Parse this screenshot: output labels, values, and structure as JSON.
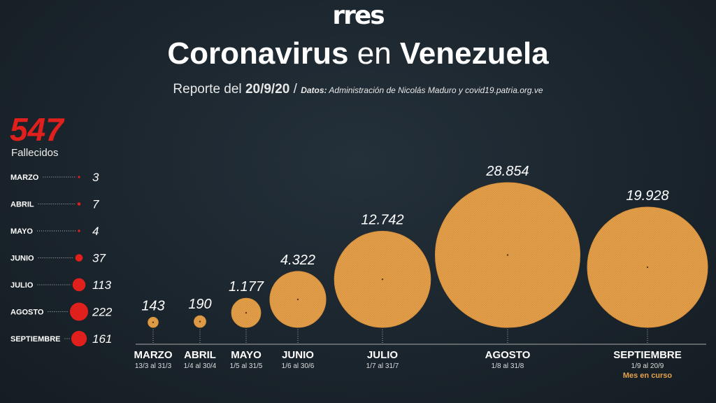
{
  "logo": "rres",
  "header": {
    "title_part1": "Coronavirus",
    "title_part2": " en ",
    "title_part3": "Venezuela",
    "report_prefix": "Reporte del ",
    "report_date": "20/9/20",
    "source_slash": " /",
    "source_label": "Datos:",
    "source_text": " Administración de Nicolás Maduro y covid19.patria.org.ve"
  },
  "deaths_panel": {
    "total": "547",
    "label": "Fallecidos"
  },
  "colors": {
    "background": "#1b252d",
    "cases_circle": "#e5a04c",
    "deaths_circle": "#e0201c",
    "highlight_text": "#e5a04c"
  },
  "chart_data": [
    {
      "type": "bubble",
      "title": "Fallecidos",
      "categories": [
        "MARZO",
        "ABRIL",
        "MAYO",
        "JUNIO",
        "JULIO",
        "AGOSTO",
        "SEPTIEMBRE"
      ],
      "values": [
        3,
        7,
        4,
        37,
        113,
        222,
        161
      ],
      "value_labels": [
        "3",
        "7",
        "4",
        "37",
        "113",
        "222",
        "161"
      ],
      "legend": "none"
    },
    {
      "type": "bubble",
      "title": "",
      "categories": [
        "MARZO",
        "ABRIL",
        "MAYO",
        "JUNIO",
        "JULIO",
        "AGOSTO",
        "SEPTIEMBRE"
      ],
      "ranges": [
        "13/3 al 31/3",
        "1/4 al 30/4",
        "1/5 al 31/5",
        "1/6 al 30/6",
        "1/7 al 31/7",
        "1/8 al 31/8",
        "1/9 al 20/9"
      ],
      "values": [
        143,
        190,
        1177,
        4322,
        12742,
        28854,
        19928
      ],
      "value_labels": [
        "143",
        "190",
        "1.177",
        "4.322",
        "12.742",
        "28.854",
        "19.928"
      ],
      "annotations": [
        {
          "category": "SEPTIEMBRE",
          "text": "Mes en curso"
        }
      ],
      "legend": "none"
    }
  ]
}
